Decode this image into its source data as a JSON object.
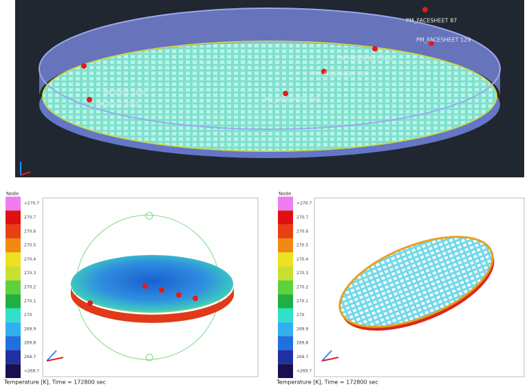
{
  "top_view": {
    "labels": [
      "PM_FACESHEET 87",
      "PM_FACESHEET 129",
      "PM_FACESHEET 128",
      "PM_FACESHEET 506",
      "PM_FACESHEET 649",
      "PM_EDGE 2262",
      "PM_EDGE 1320"
    ]
  },
  "panels": [
    {
      "legend_title": "Node",
      "legend_labels": [
        ">270.7",
        "270.7",
        "270.6",
        "270.5",
        "270.4",
        "270.3",
        "270.2",
        "270.1",
        "270",
        "269.9",
        "269.8",
        "269.7",
        "<269.7"
      ],
      "caption": "Temperature [K], Time = 172800 sec"
    },
    {
      "legend_title": "Node",
      "legend_labels": [
        ">270.7",
        "270.7",
        "270.6",
        "270.5",
        "270.4",
        "270.3",
        "270.2",
        "270.1",
        "270",
        "269.9",
        "269.8",
        "269.7",
        "<269.7"
      ],
      "caption": "Temperature [K], Time = 172800 sec"
    }
  ]
}
